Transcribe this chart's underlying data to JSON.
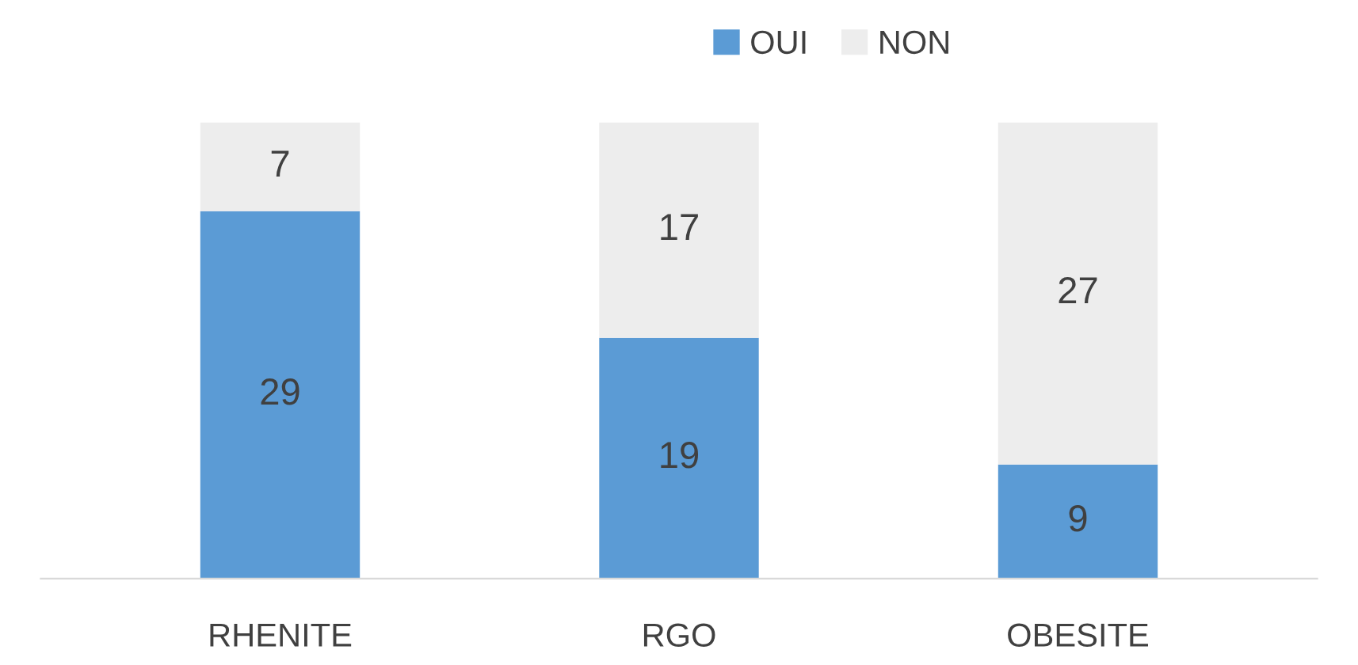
{
  "chart_data": {
    "type": "bar",
    "stacked": true,
    "categories": [
      "RHENITE",
      "RGO",
      "OBESITE"
    ],
    "series": [
      {
        "name": "OUI",
        "color": "#5b9bd5",
        "values": [
          29,
          19,
          9
        ]
      },
      {
        "name": "NON",
        "color": "#ededed",
        "values": [
          7,
          17,
          27
        ]
      }
    ],
    "data_labels": true,
    "legend": "top",
    "grid": false,
    "tick_labels": "x"
  }
}
